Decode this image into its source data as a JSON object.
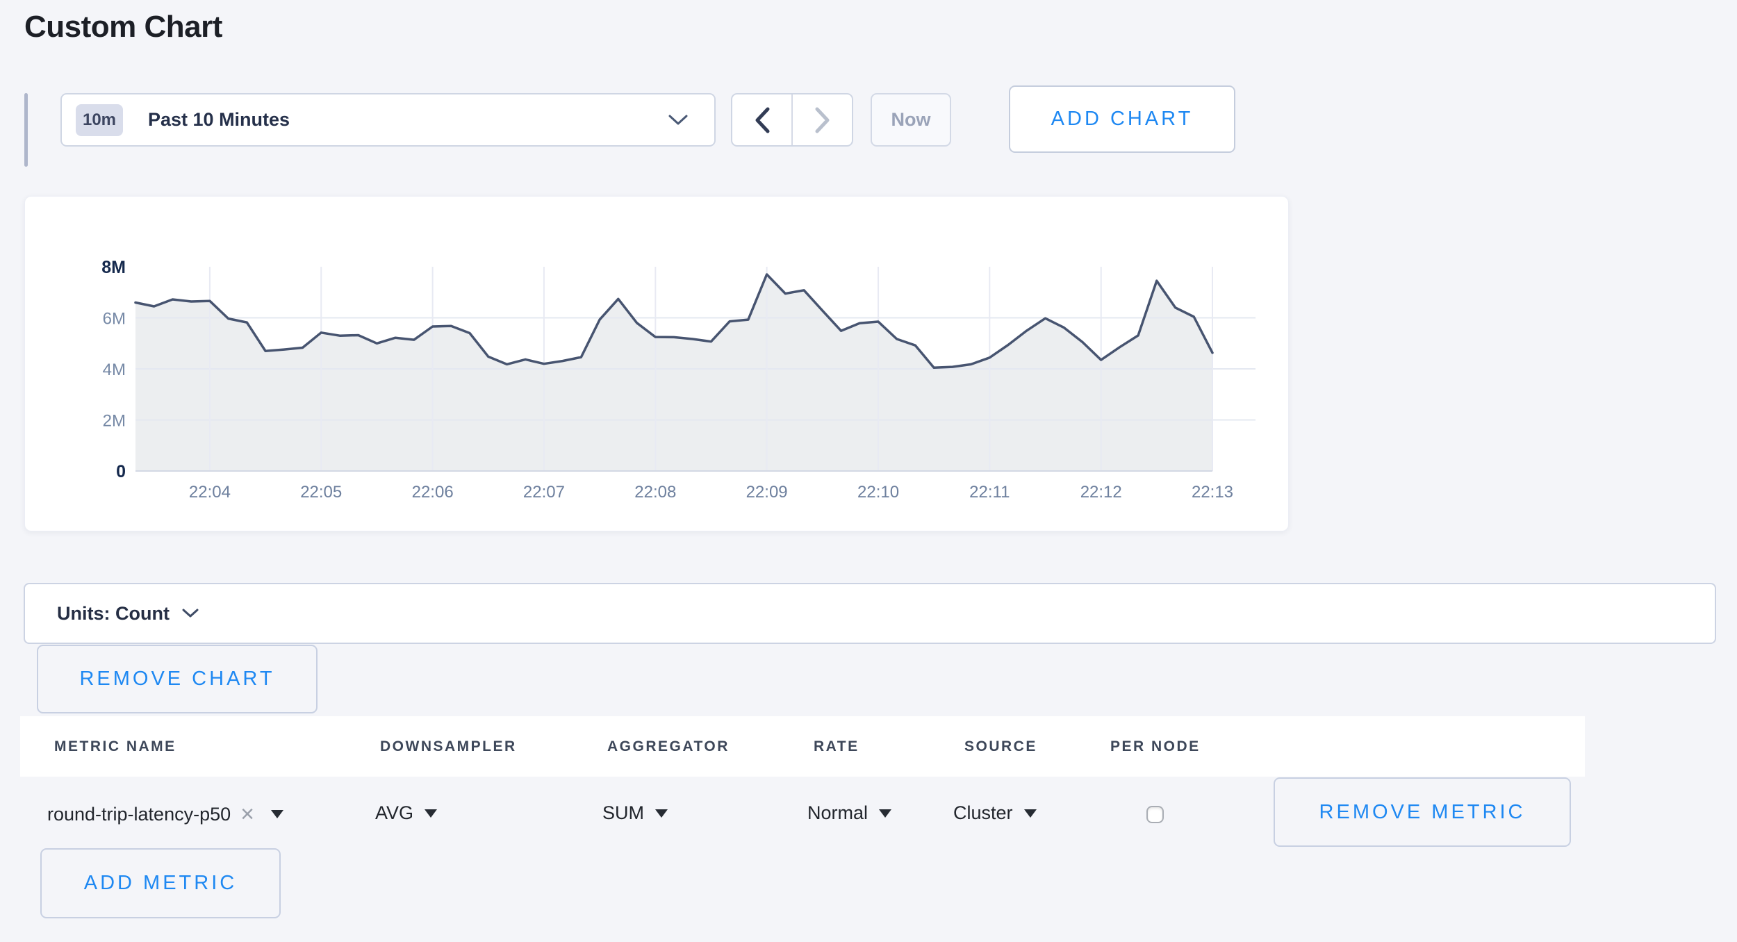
{
  "page": {
    "title": "Custom Chart"
  },
  "toolbar": {
    "range_badge": "10m",
    "range_label": "Past 10 Minutes",
    "now_label": "Now",
    "add_chart_label": "ADD CHART"
  },
  "chart_data": {
    "type": "area",
    "title": "",
    "xlabel": "",
    "ylabel": "",
    "legend": "none",
    "grid": true,
    "unit": "Count",
    "y_axis_max_millions": 8,
    "y_ticks": [
      {
        "label": "0",
        "value_millions": 0,
        "bold": true
      },
      {
        "label": "2M",
        "value_millions": 2,
        "bold": false
      },
      {
        "label": "4M",
        "value_millions": 4,
        "bold": false
      },
      {
        "label": "6M",
        "value_millions": 6,
        "bold": false
      },
      {
        "label": "8M",
        "value_millions": 8,
        "bold": true
      }
    ],
    "x_ticks": [
      {
        "label": "22:04",
        "f": 0.069
      },
      {
        "label": "22:05",
        "f": 0.1724
      },
      {
        "label": "22:06",
        "f": 0.2759
      },
      {
        "label": "22:07",
        "f": 0.3793
      },
      {
        "label": "22:08",
        "f": 0.4828
      },
      {
        "label": "22:09",
        "f": 0.5862
      },
      {
        "label": "22:10",
        "f": 0.6897
      },
      {
        "label": "22:11",
        "f": 0.7931
      },
      {
        "label": "22:12",
        "f": 0.8966
      },
      {
        "label": "22:13",
        "f": 1.0
      }
    ],
    "series": [
      {
        "name": "round-trip-latency-p50",
        "line_color": "#475470",
        "fill_color": "rgba(71,84,112,0.10)",
        "values_millions": [
          6.6,
          6.45,
          6.72,
          6.64,
          6.66,
          5.97,
          5.82,
          4.7,
          4.76,
          4.83,
          5.42,
          5.3,
          5.32,
          5.0,
          5.22,
          5.14,
          5.66,
          5.68,
          5.4,
          4.48,
          4.18,
          4.37,
          4.2,
          4.31,
          4.46,
          5.93,
          6.74,
          5.8,
          5.25,
          5.24,
          5.17,
          5.07,
          5.86,
          5.93,
          7.7,
          6.95,
          7.08,
          6.28,
          5.49,
          5.79,
          5.85,
          5.17,
          4.92,
          4.05,
          4.08,
          4.18,
          4.44,
          4.94,
          5.5,
          5.98,
          5.62,
          5.05,
          4.35,
          4.85,
          5.31,
          7.45,
          6.4,
          6.04,
          4.63
        ]
      }
    ]
  },
  "units_bar": {
    "label": "Units: Count"
  },
  "chart_actions": {
    "remove_chart_label": "REMOVE CHART"
  },
  "metrics_table": {
    "headers": [
      "METRIC NAME",
      "DOWNSAMPLER",
      "AGGREGATOR",
      "RATE",
      "SOURCE",
      "PER NODE"
    ],
    "rows": [
      {
        "metric_name": "round-trip-latency-p50",
        "downsampler": "AVG",
        "aggregator": "SUM",
        "rate": "Normal",
        "source": "Cluster",
        "per_node_checked": false,
        "remove_label": "REMOVE METRIC"
      }
    ],
    "add_metric_label": "ADD METRIC"
  }
}
